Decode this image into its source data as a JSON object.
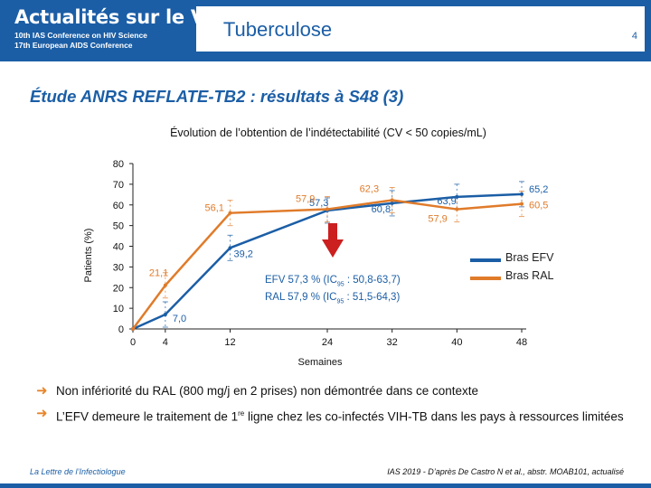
{
  "header": {
    "brand_title": "Actualités sur le VIH",
    "brand_sub1": "10th IAS Conference on HIV Science",
    "brand_sub2": "17th European AIDS Conference",
    "topic": "Tuberculose",
    "page": "4"
  },
  "slide_title": "Étude ANRS REFLATE-TB2 : résultats à S48",
  "slide_title_ref": "(3)",
  "chart_title": "Évolution de l’obtention de l’indétectabilité (CV < 50 copies/mL)",
  "stats": {
    "efv_a": "EFV 57,3 % (IC",
    "efv_sub": "95",
    "efv_b": " : 50,8-63,7)",
    "ral_a": "RAL 57,9 % (IC",
    "ral_sub": "95",
    "ral_b": " : 51,5-64,3)"
  },
  "bullets": {
    "b1": "Non infériorité du RAL (800 mg/j en 2 prises) non démontrée dans ce contexte",
    "b2_a": "L’EFV demeure le traitement de 1",
    "b2_sup": "re",
    "b2_b": " ligne chez les co-infectés VIH-TB dans les pays à ressources limitées"
  },
  "footer": {
    "left": "La Lettre de l’Infectiologue",
    "right": "IAS 2019 - D’après De Castro N et al., abstr. MOAB101, actualisé"
  },
  "colors": {
    "efv": "#1b5ea6",
    "ral": "#e07b2a",
    "brand": "#1b5ea6",
    "arrow_down": "#cc1f1f"
  },
  "chart_data": {
    "type": "line",
    "x": [
      0,
      4,
      12,
      24,
      32,
      40,
      48
    ],
    "xlabel": "Semaines",
    "ylabel": "Patients (%)",
    "ylim": [
      0,
      80
    ],
    "yticks": [
      0,
      10,
      20,
      30,
      40,
      50,
      60,
      70,
      80
    ],
    "legend": "right",
    "series": [
      {
        "name": "Bras EFV",
        "values": [
          0,
          7.0,
          39.2,
          57.3,
          60.8,
          63.9,
          65.2
        ],
        "labels": [
          "",
          "7,0",
          "39,2",
          "57,3",
          "60,8",
          "63,9",
          "65,2"
        ]
      },
      {
        "name": "Bras RAL",
        "values": [
          0,
          21.1,
          56.1,
          57.9,
          62.3,
          57.9,
          60.5
        ],
        "labels": [
          "",
          "21,1",
          "56,1",
          "57,9",
          "62,3",
          "57,9",
          "60,5"
        ]
      }
    ]
  }
}
